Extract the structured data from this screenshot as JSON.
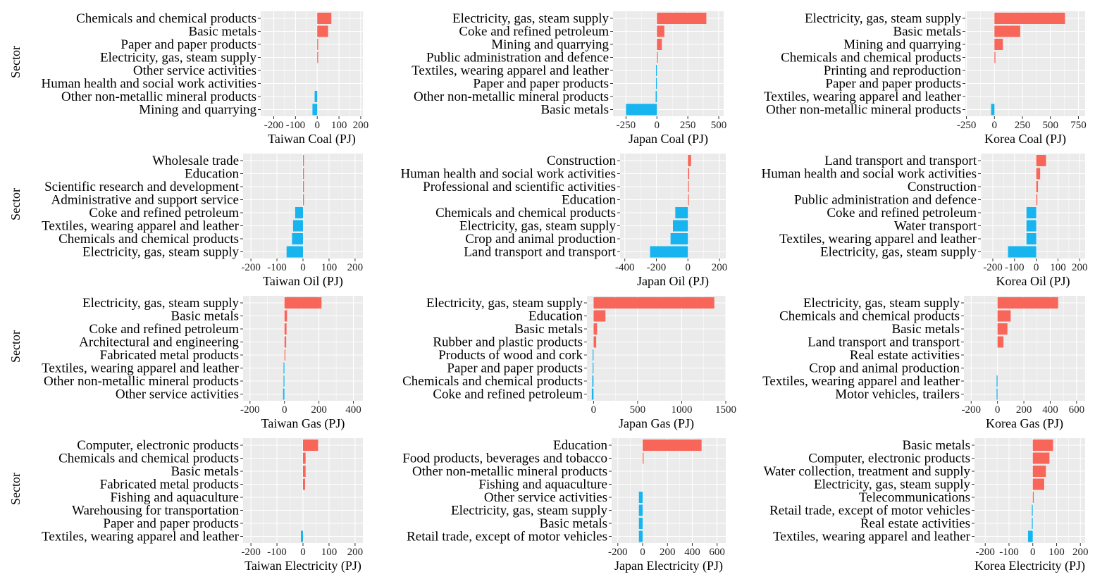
{
  "colors": {
    "positive": "#f8665a",
    "negative": "#17b4f0",
    "panel": "#ebebeb"
  },
  "shared_y_label": "Sector",
  "chart_data": [
    {
      "type": "bar",
      "orientation": "horizontal",
      "title": "",
      "xlabel": "Taiwan Coal (PJ)",
      "ylabel": "Sector",
      "xlim": [
        -260,
        210
      ],
      "ticks": [
        -200,
        -100,
        0,
        100,
        200
      ],
      "tick_labels": [
        "-200",
        "-100",
        "0",
        "100",
        "200"
      ],
      "categories": [
        "Chemicals and chemical products",
        "Basic metals",
        "Paper and paper products",
        "Electricity, gas, steam supply",
        "Other service activities",
        "Human health and social work activities",
        "Other non-metallic mineral products",
        "Mining and quarrying"
      ],
      "values": [
        65,
        50,
        4,
        2,
        0,
        0,
        -12,
        -22
      ]
    },
    {
      "type": "bar",
      "orientation": "horizontal",
      "title": "",
      "xlabel": "Japan Coal (PJ)",
      "ylabel": "",
      "xlim": [
        -355,
        540
      ],
      "ticks": [
        -250,
        0,
        250,
        500
      ],
      "tick_labels": [
        "-250",
        "0",
        "250",
        "500"
      ],
      "categories": [
        "Electricity, gas, steam supply",
        "Coke and refined petroleum",
        "Mining and quarrying",
        "Public administration and defence",
        "Textiles, wearing apparel and leather",
        "Paper and paper products",
        "Other non-metallic mineral products",
        "Basic metals"
      ],
      "values": [
        400,
        60,
        40,
        5,
        -3,
        -5,
        -10,
        -250
      ]
    },
    {
      "type": "bar",
      "orientation": "horizontal",
      "title": "",
      "xlabel": "Korea Coal (PJ)",
      "ylabel": "",
      "xlim": [
        -260,
        810
      ],
      "ticks": [
        -250,
        0,
        250,
        500,
        750
      ],
      "tick_labels": [
        "-250",
        "0",
        "250",
        "500",
        "750"
      ],
      "categories": [
        "Electricity, gas, steam supply",
        "Basic metals",
        "Mining and quarrying",
        "Chemicals and chemical products",
        "Printing and reproduction",
        "Paper and paper products",
        "Textiles, wearing apparel and leather",
        "Other non-metallic mineral products"
      ],
      "values": [
        630,
        230,
        75,
        8,
        0,
        0,
        0,
        -30
      ]
    },
    {
      "type": "bar",
      "orientation": "horizontal",
      "title": "",
      "xlabel": "Taiwan Oil (PJ)",
      "ylabel": "Sector",
      "xlim": [
        -230,
        230
      ],
      "ticks": [
        -200,
        -100,
        0,
        100,
        200
      ],
      "tick_labels": [
        "-200",
        "-100",
        "0",
        "100",
        "200"
      ],
      "categories": [
        "Wholesale trade",
        "Education",
        "Scientific research and development",
        "Administrative and support service",
        "Coke and refined petroleum",
        "Textiles, wearing apparel and leather",
        "Chemicals and chemical products",
        "Electricity, gas, steam supply"
      ],
      "values": [
        3,
        2,
        1,
        1,
        -30,
        -38,
        -42,
        -63
      ]
    },
    {
      "type": "bar",
      "orientation": "horizontal",
      "title": "",
      "xlabel": "Japan Oil (PJ)",
      "ylabel": "",
      "xlim": [
        -430,
        240
      ],
      "ticks": [
        -400,
        -200,
        0,
        200
      ],
      "tick_labels": [
        "-400",
        "-200",
        "0",
        "200"
      ],
      "categories": [
        "Construction",
        "Human health and social work activities",
        "Professional and scientific activities",
        "Education",
        "Chemicals and chemical products",
        "Electricity, gas, steam supply",
        "Crop and animal production",
        "Land transport and transport"
      ],
      "values": [
        20,
        8,
        6,
        2,
        -80,
        -95,
        -110,
        -240
      ]
    },
    {
      "type": "bar",
      "orientation": "horizontal",
      "title": "",
      "xlabel": "Korea Oil (PJ)",
      "ylabel": "",
      "xlim": [
        -255,
        225
      ],
      "ticks": [
        -200,
        -100,
        0,
        100,
        200
      ],
      "tick_labels": [
        "-200",
        "-100",
        "0",
        "100",
        "200"
      ],
      "categories": [
        "Land transport and transport",
        "Human health and social work activities",
        "Construction",
        "Public administration and defence",
        "Coke and refined petroleum",
        "Water transport",
        "Textiles, wearing apparel and leather",
        "Electricity, gas, steam supply"
      ],
      "values": [
        45,
        18,
        8,
        5,
        -45,
        -45,
        -45,
        -130
      ]
    },
    {
      "type": "bar",
      "orientation": "horizontal",
      "title": "",
      "xlabel": "Taiwan Gas (PJ)",
      "ylabel": "Sector",
      "xlim": [
        -240,
        455
      ],
      "ticks": [
        -200,
        0,
        200,
        400
      ],
      "tick_labels": [
        "-200",
        "0",
        "200",
        "400"
      ],
      "categories": [
        "Electricity, gas, steam supply",
        "Basic metals",
        "Coke and refined petroleum",
        "Architectural and engineering",
        "Fabricated metal products",
        "Textiles, wearing apparel and leather",
        "Other non-metallic mineral products",
        "Other service activities"
      ],
      "values": [
        215,
        15,
        12,
        10,
        2,
        -2,
        -3,
        -8
      ]
    },
    {
      "type": "bar",
      "orientation": "horizontal",
      "title": "",
      "xlabel": "Japan Gas (PJ)",
      "ylabel": "",
      "xlim": [
        -75,
        1500
      ],
      "ticks": [
        0,
        500,
        1000,
        1500
      ],
      "tick_labels": [
        "0",
        "500",
        "1000",
        "1500"
      ],
      "categories": [
        "Electricity, gas, steam supply",
        "Education",
        "Basic metals",
        "Rubber and plastic products",
        "Products of wood and cork",
        "Paper and paper products",
        "Chemicals and chemical products",
        "Coke and refined petroleum"
      ],
      "values": [
        1370,
        135,
        40,
        30,
        -5,
        -10,
        -15,
        -20
      ]
    },
    {
      "type": "bar",
      "orientation": "horizontal",
      "title": "",
      "xlabel": "Korea Gas (PJ)",
      "ylabel": "",
      "xlim": [
        -255,
        665
      ],
      "ticks": [
        -200,
        0,
        200,
        400,
        600
      ],
      "tick_labels": [
        "-200",
        "0",
        "200",
        "400",
        "600"
      ],
      "categories": [
        "Electricity, gas, steam supply",
        "Chemicals and chemical products",
        "Basic metals",
        "Land transport and transport",
        "Real estate activities",
        "Crop and animal production",
        "Textiles, wearing apparel and leather",
        "Motor vehicles, trailers"
      ],
      "values": [
        460,
        100,
        75,
        45,
        0,
        0,
        -3,
        -5
      ]
    },
    {
      "type": "bar",
      "orientation": "horizontal",
      "title": "",
      "xlabel": "Taiwan Electricity (PJ)",
      "ylabel": "Sector",
      "xlim": [
        -230,
        230
      ],
      "ticks": [
        -200,
        -100,
        0,
        100,
        200
      ],
      "tick_labels": [
        "-200",
        "-100",
        "0",
        "100",
        "200"
      ],
      "categories": [
        "Computer, electronic products",
        "Chemicals and chemical products",
        "Basic metals",
        "Fabricated metal products",
        "Fishing and aquaculture",
        "Warehousing for transportation",
        "Paper and paper products",
        "Textiles, wearing apparel and leather"
      ],
      "values": [
        58,
        10,
        10,
        8,
        0,
        0,
        0,
        -8
      ]
    },
    {
      "type": "bar",
      "orientation": "horizontal",
      "title": "",
      "xlabel": "Japan Electricity (PJ)",
      "ylabel": "",
      "xlim": [
        -250,
        670
      ],
      "ticks": [
        -200,
        0,
        200,
        400,
        600
      ],
      "tick_labels": [
        "-200",
        "0",
        "200",
        "400",
        "600"
      ],
      "categories": [
        "Education",
        "Food products, beverages and tobacco",
        "Other non-metallic mineral products",
        "Fishing and aquaculture",
        "Other service activities",
        "Electricity, gas, steam supply",
        "Basic metals",
        "Retail trade, except of motor vehicles"
      ],
      "values": [
        475,
        3,
        0,
        0,
        -30,
        -30,
        -30,
        -30
      ]
    },
    {
      "type": "bar",
      "orientation": "horizontal",
      "title": "",
      "xlabel": "Korea Electricity (PJ)",
      "ylabel": "",
      "xlim": [
        -245,
        220
      ],
      "ticks": [
        -200,
        -100,
        0,
        100,
        200
      ],
      "tick_labels": [
        "-200",
        "-100",
        "0",
        "100",
        "200"
      ],
      "categories": [
        "Basic metals",
        "Computer, electronic products",
        "Water collection, treatment and supply",
        "Electricity, gas, steam supply",
        "Telecommunications",
        "Retail trade, except of motor vehicles",
        "Real estate activities",
        "Textiles, wearing apparel and leather"
      ],
      "values": [
        85,
        70,
        55,
        48,
        2,
        -2,
        -3,
        -20
      ]
    }
  ]
}
